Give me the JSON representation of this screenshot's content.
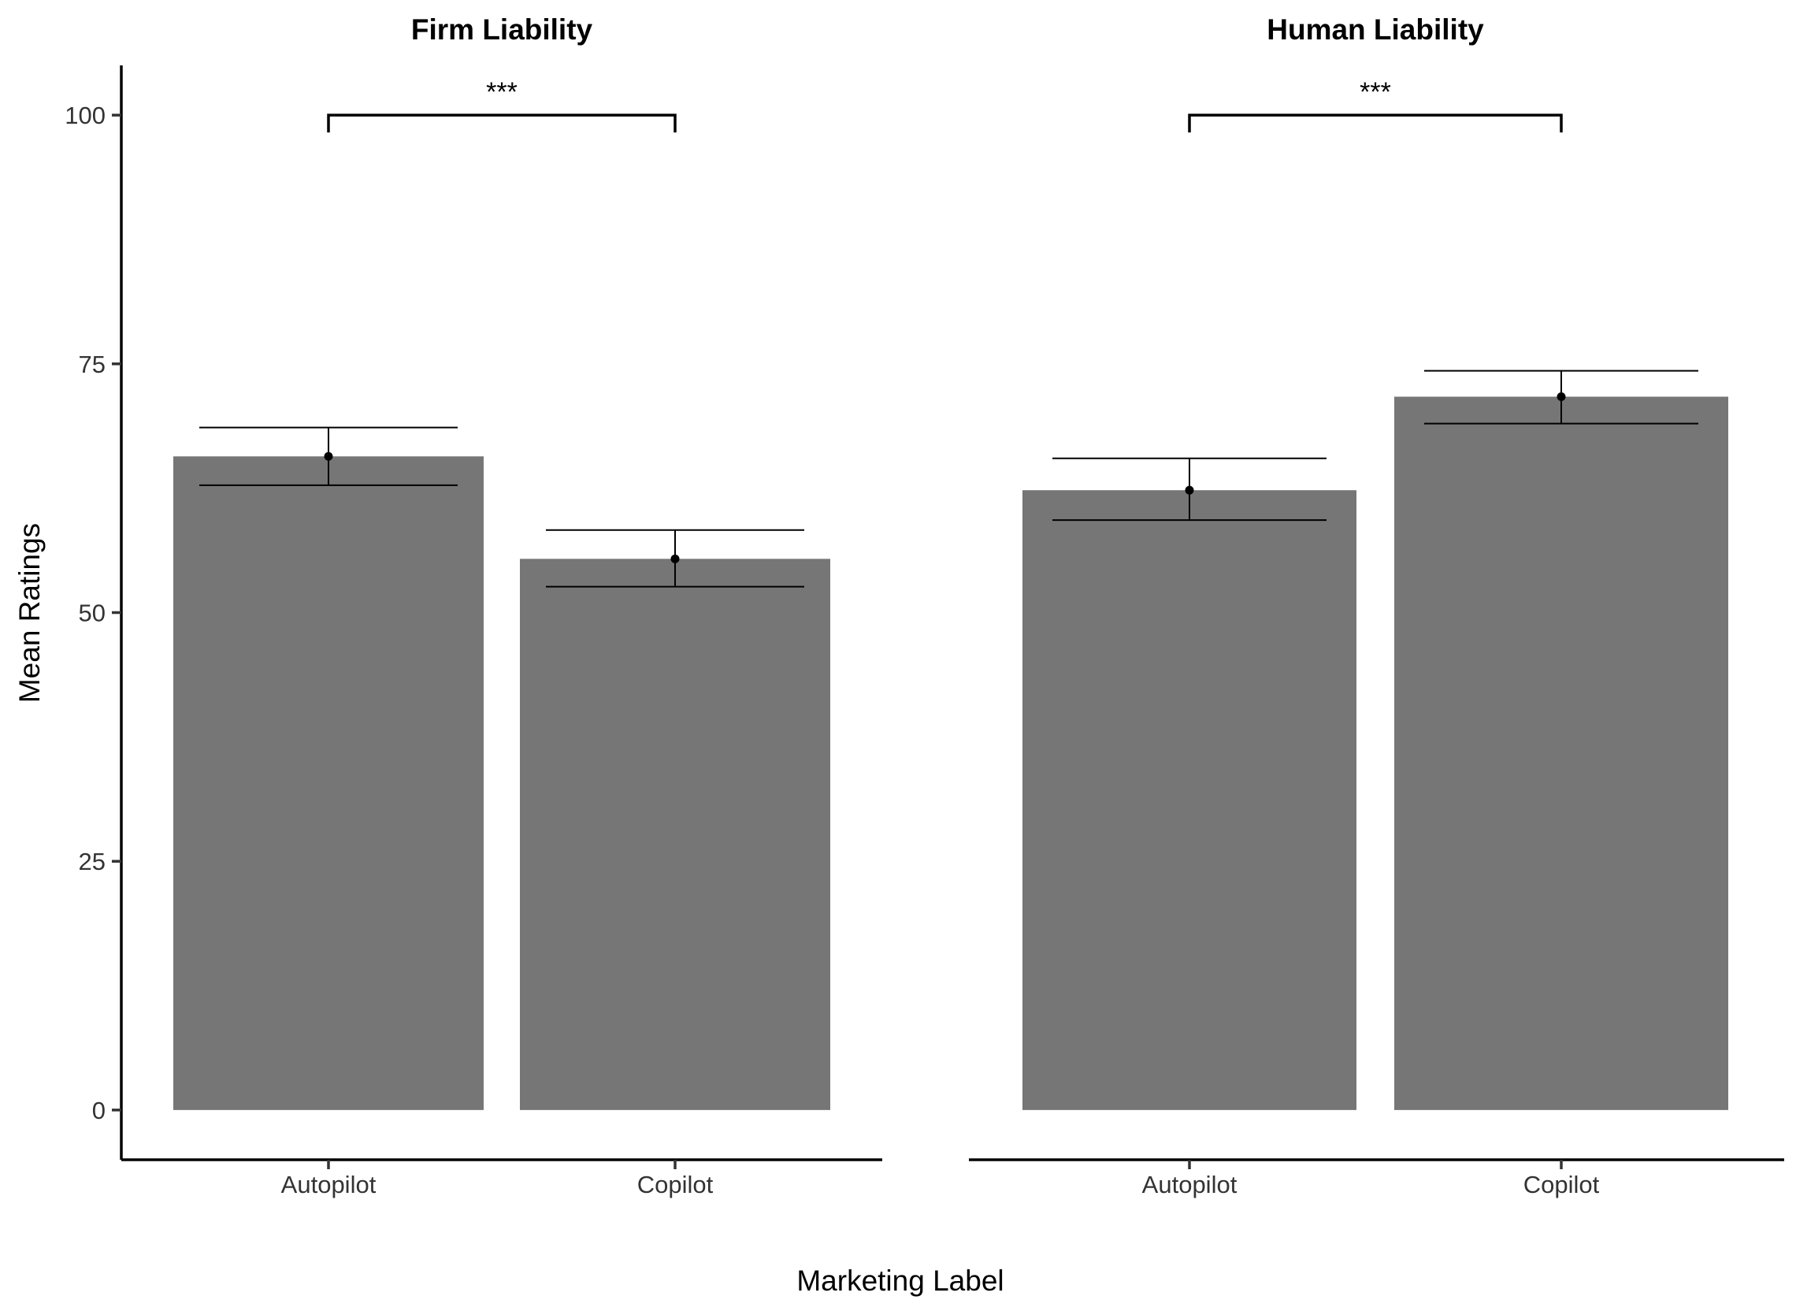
{
  "chart_data": {
    "type": "bar",
    "xlabel": "Marketing Label",
    "ylabel": "Mean Ratings",
    "ylim": [
      -5,
      105
    ],
    "yticks": [
      0,
      25,
      50,
      75,
      100
    ],
    "categories": [
      "Autopilot",
      "Copilot"
    ],
    "grid": false,
    "bar_color": "#767676",
    "panels": [
      {
        "title": "Firm Liability",
        "values": [
          65.7,
          55.4
        ],
        "error_low": [
          62.8,
          52.6
        ],
        "error_high": [
          68.6,
          58.3
        ],
        "significance": {
          "label": "***",
          "y": 100
        }
      },
      {
        "title": "Human Liability",
        "values": [
          62.3,
          71.7
        ],
        "error_low": [
          59.3,
          69.0
        ],
        "error_high": [
          65.5,
          74.3
        ],
        "significance": {
          "label": "***",
          "y": 100
        }
      }
    ]
  }
}
